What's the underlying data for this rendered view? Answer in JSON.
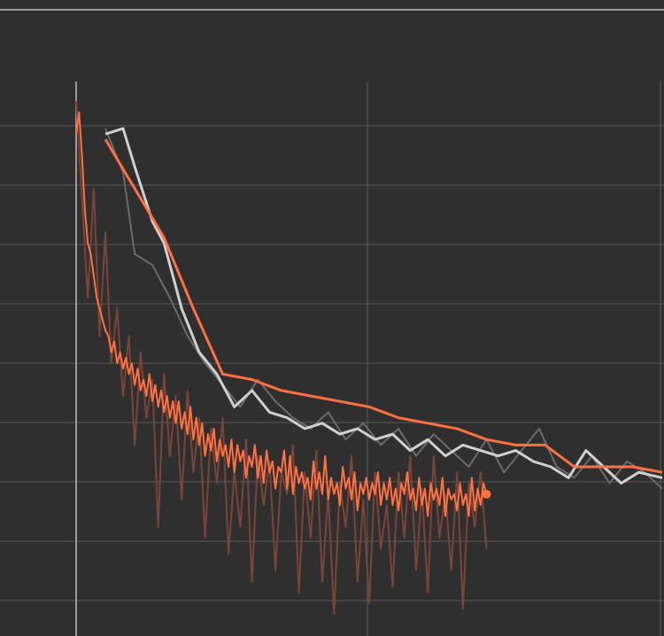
{
  "theme": {
    "background": "#2f2f2f",
    "grid": "#5a5a5a",
    "axis": "#9a9a9a",
    "orange": "#ff7043",
    "orange_dim": "#7a4536",
    "white": "#d0d0d0",
    "gray_dim": "#6b6b6b"
  },
  "chart_data": {
    "type": "line",
    "title": "",
    "xlabel": "",
    "ylabel": "",
    "xlim": [
      0,
      1
    ],
    "ylim": [
      0,
      1
    ],
    "grid": true,
    "series": [
      {
        "color": "#7a4536",
        "style": "raw",
        "x": [
          0.0,
          0.01,
          0.02,
          0.03,
          0.04,
          0.05,
          0.06,
          0.07,
          0.08,
          0.09,
          0.1,
          0.11,
          0.12,
          0.13,
          0.14,
          0.15,
          0.16,
          0.17,
          0.18,
          0.19,
          0.2,
          0.21,
          0.22,
          0.23,
          0.24,
          0.25,
          0.26,
          0.27,
          0.28,
          0.29,
          0.3,
          0.31,
          0.32,
          0.33,
          0.34,
          0.35,
          0.36,
          0.37,
          0.38,
          0.39,
          0.4,
          0.41,
          0.42,
          0.43,
          0.44,
          0.45,
          0.46,
          0.47,
          0.48,
          0.49,
          0.5,
          0.51,
          0.52,
          0.53,
          0.54,
          0.55,
          0.56,
          0.57,
          0.58,
          0.59,
          0.6,
          0.61,
          0.62,
          0.63,
          0.64,
          0.65,
          0.66,
          0.67,
          0.68,
          0.69,
          0.7
        ],
        "y": [
          0.98,
          0.8,
          0.62,
          0.82,
          0.55,
          0.74,
          0.5,
          0.6,
          0.44,
          0.55,
          0.35,
          0.52,
          0.4,
          0.47,
          0.2,
          0.48,
          0.33,
          0.44,
          0.25,
          0.45,
          0.3,
          0.4,
          0.18,
          0.38,
          0.28,
          0.4,
          0.15,
          0.3,
          0.2,
          0.36,
          0.1,
          0.33,
          0.24,
          0.32,
          0.12,
          0.3,
          0.26,
          0.35,
          0.08,
          0.3,
          0.18,
          0.34,
          0.1,
          0.26,
          0.04,
          0.28,
          0.2,
          0.33,
          0.1,
          0.25,
          0.06,
          0.3,
          0.16,
          0.24,
          0.09,
          0.3,
          0.18,
          0.33,
          0.12,
          0.27,
          0.08,
          0.33,
          0.18,
          0.26,
          0.12,
          0.3,
          0.05,
          0.28,
          0.2,
          0.3,
          0.16
        ]
      },
      {
        "color": "#ff7043",
        "style": "raw",
        "x": [
          0.0,
          0.005,
          0.01,
          0.015,
          0.02,
          0.025,
          0.03,
          0.035,
          0.04,
          0.045,
          0.05,
          0.055,
          0.06,
          0.065,
          0.07,
          0.075,
          0.08,
          0.085,
          0.09,
          0.095,
          0.1,
          0.105,
          0.11,
          0.115,
          0.12,
          0.125,
          0.13,
          0.135,
          0.14,
          0.145,
          0.15,
          0.155,
          0.16,
          0.165,
          0.17,
          0.175,
          0.18,
          0.185,
          0.19,
          0.195,
          0.2,
          0.205,
          0.21,
          0.215,
          0.22,
          0.225,
          0.23,
          0.235,
          0.24,
          0.245,
          0.25,
          0.255,
          0.26,
          0.265,
          0.27,
          0.275,
          0.28,
          0.285,
          0.29,
          0.295,
          0.3,
          0.305,
          0.31,
          0.315,
          0.32,
          0.325,
          0.33,
          0.335,
          0.34,
          0.345,
          0.35,
          0.355,
          0.36,
          0.365,
          0.37,
          0.375,
          0.38,
          0.385,
          0.39,
          0.395,
          0.4,
          0.405,
          0.41,
          0.415,
          0.42,
          0.425,
          0.43,
          0.435,
          0.44,
          0.445,
          0.45,
          0.455,
          0.46,
          0.465,
          0.47,
          0.475,
          0.48,
          0.485,
          0.49,
          0.495,
          0.5,
          0.505,
          0.51,
          0.515,
          0.52,
          0.525,
          0.53,
          0.535,
          0.54,
          0.545,
          0.55,
          0.555,
          0.56,
          0.565,
          0.57,
          0.575,
          0.58,
          0.585,
          0.59,
          0.595,
          0.6,
          0.605,
          0.61,
          0.615,
          0.62,
          0.625,
          0.63,
          0.635,
          0.64,
          0.645,
          0.65,
          0.655,
          0.66,
          0.665,
          0.67,
          0.675,
          0.68,
          0.685,
          0.69,
          0.695,
          0.7
        ],
        "y": [
          0.92,
          0.96,
          0.88,
          0.78,
          0.72,
          0.7,
          0.66,
          0.62,
          0.6,
          0.58,
          0.56,
          0.55,
          0.52,
          0.54,
          0.5,
          0.52,
          0.49,
          0.51,
          0.48,
          0.5,
          0.46,
          0.49,
          0.45,
          0.47,
          0.44,
          0.48,
          0.43,
          0.46,
          0.42,
          0.45,
          0.41,
          0.44,
          0.4,
          0.43,
          0.39,
          0.43,
          0.38,
          0.41,
          0.37,
          0.42,
          0.36,
          0.4,
          0.35,
          0.39,
          0.33,
          0.37,
          0.34,
          0.38,
          0.32,
          0.36,
          0.33,
          0.35,
          0.31,
          0.36,
          0.3,
          0.35,
          0.32,
          0.34,
          0.29,
          0.33,
          0.31,
          0.35,
          0.29,
          0.33,
          0.28,
          0.34,
          0.3,
          0.32,
          0.27,
          0.31,
          0.3,
          0.34,
          0.27,
          0.33,
          0.26,
          0.31,
          0.28,
          0.3,
          0.27,
          0.29,
          0.25,
          0.32,
          0.27,
          0.3,
          0.26,
          0.33,
          0.25,
          0.29,
          0.26,
          0.28,
          0.24,
          0.31,
          0.27,
          0.29,
          0.25,
          0.3,
          0.23,
          0.28,
          0.26,
          0.29,
          0.25,
          0.28,
          0.26,
          0.3,
          0.24,
          0.28,
          0.25,
          0.29,
          0.24,
          0.27,
          0.23,
          0.28,
          0.26,
          0.3,
          0.25,
          0.27,
          0.23,
          0.29,
          0.24,
          0.27,
          0.22,
          0.28,
          0.25,
          0.27,
          0.24,
          0.29,
          0.22,
          0.27,
          0.25,
          0.26,
          0.23,
          0.28,
          0.24,
          0.26,
          0.22,
          0.29,
          0.23,
          0.27,
          0.24,
          0.28,
          0.26
        ]
      },
      {
        "color": "#6b6b6b",
        "style": "raw",
        "x": [
          0.05,
          0.08,
          0.1,
          0.13,
          0.16,
          0.19,
          0.22,
          0.25,
          0.28,
          0.31,
          0.34,
          0.37,
          0.4,
          0.43,
          0.46,
          0.49,
          0.52,
          0.55,
          0.58,
          0.61,
          0.64,
          0.67,
          0.7,
          0.73,
          0.76,
          0.79,
          0.82,
          0.85,
          0.88,
          0.91,
          0.94,
          0.97,
          1.0
        ],
        "y": [
          0.93,
          0.85,
          0.7,
          0.68,
          0.62,
          0.55,
          0.5,
          0.46,
          0.42,
          0.47,
          0.43,
          0.4,
          0.38,
          0.41,
          0.36,
          0.39,
          0.35,
          0.38,
          0.33,
          0.37,
          0.34,
          0.31,
          0.36,
          0.3,
          0.34,
          0.38,
          0.31,
          0.29,
          0.33,
          0.28,
          0.32,
          0.3,
          0.27
        ]
      },
      {
        "color": "#d0d0d0",
        "style": "smooth",
        "x": [
          0.05,
          0.08,
          0.1,
          0.13,
          0.15,
          0.18,
          0.21,
          0.24,
          0.27,
          0.3,
          0.33,
          0.36,
          0.39,
          0.42,
          0.45,
          0.48,
          0.51,
          0.54,
          0.57,
          0.6,
          0.63,
          0.66,
          0.69,
          0.72,
          0.75,
          0.78,
          0.81,
          0.84,
          0.87,
          0.9,
          0.93,
          0.96,
          1.0
        ],
        "y": [
          0.92,
          0.93,
          0.86,
          0.76,
          0.72,
          0.6,
          0.52,
          0.48,
          0.42,
          0.45,
          0.41,
          0.4,
          0.38,
          0.39,
          0.37,
          0.38,
          0.36,
          0.37,
          0.34,
          0.36,
          0.33,
          0.35,
          0.34,
          0.33,
          0.34,
          0.32,
          0.31,
          0.29,
          0.34,
          0.31,
          0.28,
          0.3,
          0.29
        ]
      },
      {
        "color": "#ff7043",
        "style": "smooth",
        "x": [
          0.05,
          0.1,
          0.15,
          0.2,
          0.25,
          0.3,
          0.35,
          0.4,
          0.45,
          0.5,
          0.55,
          0.6,
          0.65,
          0.7,
          0.75,
          0.8,
          0.85,
          0.9,
          0.95,
          1.0
        ],
        "y": [
          0.91,
          0.82,
          0.73,
          0.6,
          0.48,
          0.47,
          0.45,
          0.44,
          0.43,
          0.42,
          0.4,
          0.39,
          0.38,
          0.36,
          0.35,
          0.35,
          0.31,
          0.31,
          0.31,
          0.3
        ]
      }
    ],
    "markers": [
      {
        "color": "#ff7043",
        "x": 0.7,
        "y": 0.26
      }
    ]
  }
}
